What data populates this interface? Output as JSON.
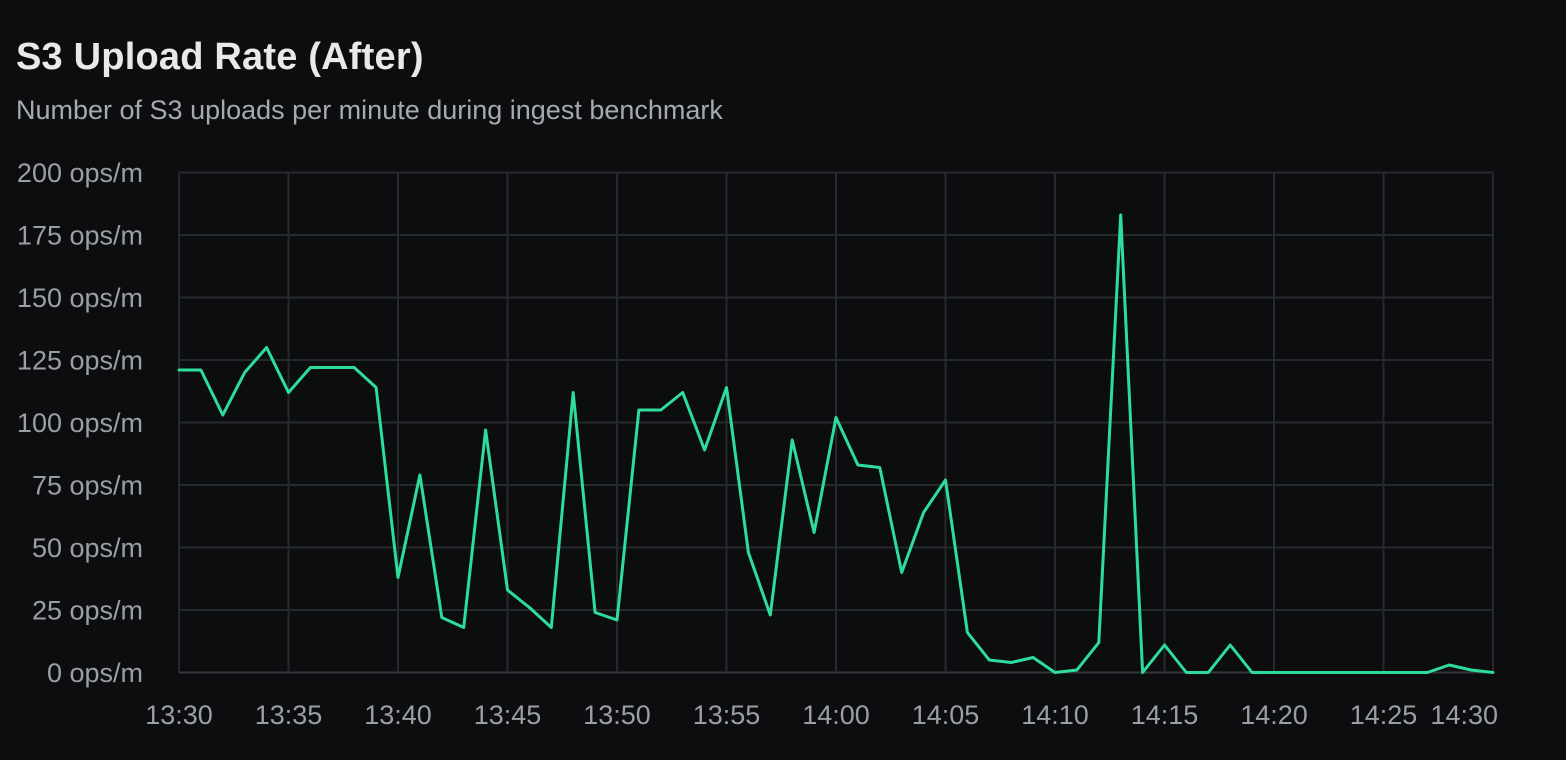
{
  "panel": {
    "title": "S3 Upload Rate (After)",
    "subtitle": "Number of S3 uploads per minute during ingest benchmark"
  },
  "colors": {
    "background": "#0c0d0e",
    "title_text": "#e8e9eb",
    "subtitle_text": "#a6a9ad",
    "tick_label": "#9b9ea3",
    "gridline": "#26292d",
    "axis_line": "#34383c",
    "series_line": "#2edd9b"
  },
  "chart_data": {
    "type": "line",
    "title": "S3 Upload Rate (After)",
    "subtitle": "Number of S3 uploads per minute during ingest benchmark",
    "ylabel": "ops/m",
    "ylim": [
      0,
      200
    ],
    "grid": true,
    "legend": false,
    "line_color": "#2edd9b",
    "y_ticks": [
      0,
      25,
      50,
      75,
      100,
      125,
      150,
      175,
      200
    ],
    "y_tick_labels": [
      "0 ops/m",
      "25 ops/m",
      "50 ops/m",
      "75 ops/m",
      "100 ops/m",
      "125 ops/m",
      "150 ops/m",
      "175 ops/m",
      "200 ops/m"
    ],
    "x_tick_every": 5,
    "x_tick_labels": [
      "13:30",
      "13:35",
      "13:40",
      "13:45",
      "13:50",
      "13:55",
      "14:00",
      "14:05",
      "14:10",
      "14:15",
      "14:20",
      "14:25",
      "14:30"
    ],
    "x": [
      "13:30",
      "13:31",
      "13:32",
      "13:33",
      "13:34",
      "13:35",
      "13:36",
      "13:37",
      "13:38",
      "13:39",
      "13:40",
      "13:41",
      "13:42",
      "13:43",
      "13:44",
      "13:45",
      "13:46",
      "13:47",
      "13:48",
      "13:49",
      "13:50",
      "13:51",
      "13:52",
      "13:53",
      "13:54",
      "13:55",
      "13:56",
      "13:57",
      "13:58",
      "13:59",
      "14:00",
      "14:01",
      "14:02",
      "14:03",
      "14:04",
      "14:05",
      "14:06",
      "14:07",
      "14:08",
      "14:09",
      "14:10",
      "14:11",
      "14:12",
      "14:13",
      "14:14",
      "14:15",
      "14:16",
      "14:17",
      "14:18",
      "14:19",
      "14:20",
      "14:21",
      "14:22",
      "14:23",
      "14:24",
      "14:25",
      "14:26",
      "14:27",
      "14:28",
      "14:29",
      "14:30"
    ],
    "series": [
      {
        "name": "S3 uploads per minute",
        "values": [
          121,
          121,
          103,
          120,
          130,
          112,
          122,
          122,
          122,
          114,
          38,
          79,
          22,
          18,
          97,
          33,
          26,
          18,
          112,
          24,
          21,
          105,
          105,
          112,
          89,
          114,
          48,
          23,
          93,
          56,
          102,
          83,
          82,
          40,
          64,
          77,
          16,
          5,
          4,
          6,
          0,
          1,
          12,
          183,
          0,
          11,
          0,
          0,
          11,
          0,
          0,
          0,
          0,
          0,
          0,
          0,
          0,
          0,
          3,
          1,
          0
        ]
      }
    ]
  }
}
